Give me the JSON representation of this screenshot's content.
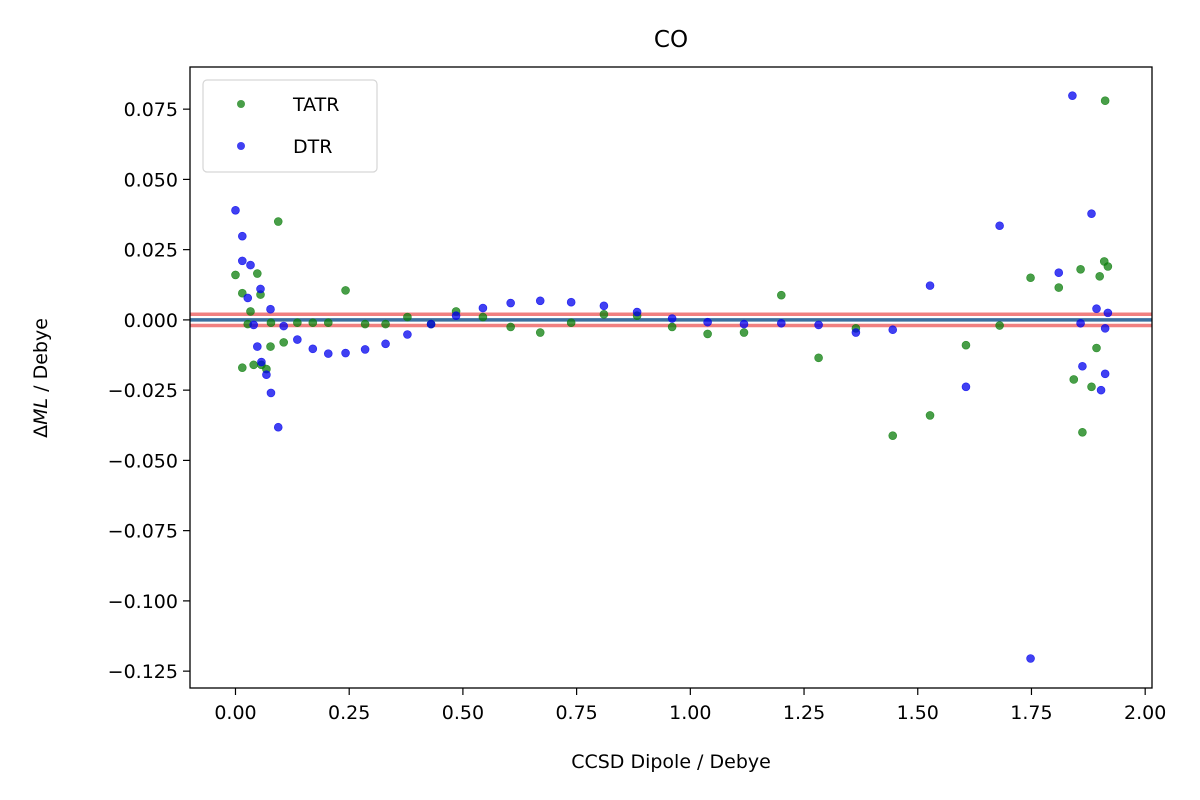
{
  "chart_data": {
    "type": "scatter",
    "title": "CO",
    "xlabel": "CCSD Dipole / Debye",
    "ylabel_prefix": "Δ",
    "ylabel_math": "ML",
    "ylabel_suffix": " / Debye",
    "xlim": [
      -0.1,
      2.015
    ],
    "ylim": [
      -0.131,
      0.09
    ],
    "xticks": [
      0.0,
      0.25,
      0.5,
      0.75,
      1.0,
      1.25,
      1.5,
      1.75,
      2.0
    ],
    "xtick_labels": [
      "0.00",
      "0.25",
      "0.50",
      "0.75",
      "1.00",
      "1.25",
      "1.50",
      "1.75",
      "2.00"
    ],
    "yticks": [
      0.075,
      0.05,
      0.025,
      0.0,
      -0.025,
      -0.05,
      -0.075,
      -0.1,
      -0.125
    ],
    "ytick_labels": [
      "0.075",
      "0.050",
      "0.025",
      "0.000",
      "−0.025",
      "−0.050",
      "−0.075",
      "−0.100",
      "−0.125"
    ],
    "legend_position": "upper left",
    "reference_lines": [
      {
        "y": 0.002,
        "color": "#f08080"
      },
      {
        "y": -0.002,
        "color": "#f08080"
      },
      {
        "y": 0.0,
        "color": "#3a6f9f"
      }
    ],
    "series": [
      {
        "name": "TATR",
        "color": "#0b7d0b",
        "points": [
          [
            0.0,
            0.016
          ],
          [
            0.015,
            0.0095
          ],
          [
            0.015,
            -0.017
          ],
          [
            0.027,
            -0.0015
          ],
          [
            0.033,
            0.003
          ],
          [
            0.04,
            -0.016
          ],
          [
            0.048,
            0.0165
          ],
          [
            0.055,
            0.009
          ],
          [
            0.057,
            -0.016
          ],
          [
            0.068,
            -0.0175
          ],
          [
            0.077,
            -0.0095
          ],
          [
            0.078,
            -0.001
          ],
          [
            0.094,
            0.035
          ],
          [
            0.106,
            -0.008
          ],
          [
            0.136,
            -0.001
          ],
          [
            0.17,
            -0.001
          ],
          [
            0.204,
            -0.001
          ],
          [
            0.242,
            0.0105
          ],
          [
            0.285,
            -0.0015
          ],
          [
            0.33,
            -0.0015
          ],
          [
            0.378,
            0.001
          ],
          [
            0.43,
            -0.0015
          ],
          [
            0.485,
            0.003
          ],
          [
            0.544,
            0.001
          ],
          [
            0.605,
            -0.0025
          ],
          [
            0.67,
            -0.0045
          ],
          [
            0.738,
            -0.001
          ],
          [
            0.81,
            0.002
          ],
          [
            0.883,
            0.0015
          ],
          [
            0.96,
            -0.0025
          ],
          [
            1.038,
            -0.005
          ],
          [
            1.118,
            -0.0045
          ],
          [
            1.2,
            0.0088
          ],
          [
            1.282,
            -0.0135
          ],
          [
            1.364,
            -0.003
          ],
          [
            1.445,
            -0.0412
          ],
          [
            1.527,
            -0.034
          ],
          [
            1.606,
            -0.009
          ],
          [
            1.68,
            -0.002
          ],
          [
            1.748,
            0.015
          ],
          [
            1.81,
            0.0115
          ],
          [
            1.843,
            -0.0212
          ],
          [
            1.858,
            0.018
          ],
          [
            1.862,
            -0.04
          ],
          [
            1.882,
            -0.0238
          ],
          [
            1.893,
            -0.01
          ],
          [
            1.9,
            0.0155
          ],
          [
            1.91,
            0.0208
          ],
          [
            1.912,
            0.078
          ],
          [
            1.918,
            0.019
          ]
        ]
      },
      {
        "name": "DTR",
        "color": "#0000ee",
        "points": [
          [
            0.0,
            0.039
          ],
          [
            0.015,
            0.0298
          ],
          [
            0.015,
            0.021
          ],
          [
            0.027,
            0.0078
          ],
          [
            0.033,
            0.0195
          ],
          [
            0.04,
            -0.0018
          ],
          [
            0.048,
            -0.0095
          ],
          [
            0.055,
            0.011
          ],
          [
            0.057,
            -0.015
          ],
          [
            0.068,
            -0.0195
          ],
          [
            0.077,
            0.0038
          ],
          [
            0.078,
            -0.026
          ],
          [
            0.094,
            -0.0382
          ],
          [
            0.106,
            -0.0022
          ],
          [
            0.136,
            -0.007
          ],
          [
            0.17,
            -0.0103
          ],
          [
            0.204,
            -0.012
          ],
          [
            0.242,
            -0.0118
          ],
          [
            0.285,
            -0.0105
          ],
          [
            0.33,
            -0.0085
          ],
          [
            0.378,
            -0.0052
          ],
          [
            0.43,
            -0.0015
          ],
          [
            0.485,
            0.0015
          ],
          [
            0.544,
            0.0042
          ],
          [
            0.605,
            0.006
          ],
          [
            0.67,
            0.0068
          ],
          [
            0.738,
            0.0063
          ],
          [
            0.81,
            0.005
          ],
          [
            0.883,
            0.0028
          ],
          [
            0.96,
            0.0005
          ],
          [
            1.038,
            -0.0008
          ],
          [
            1.118,
            -0.0015
          ],
          [
            1.2,
            -0.0012
          ],
          [
            1.282,
            -0.0018
          ],
          [
            1.364,
            -0.0045
          ],
          [
            1.445,
            -0.0035
          ],
          [
            1.527,
            0.0122
          ],
          [
            1.606,
            -0.0238
          ],
          [
            1.68,
            0.0335
          ],
          [
            1.748,
            -0.1205
          ],
          [
            1.81,
            0.0168
          ],
          [
            1.84,
            0.0798
          ],
          [
            1.858,
            -0.0012
          ],
          [
            1.862,
            -0.0165
          ],
          [
            1.882,
            0.0378
          ],
          [
            1.893,
            0.004
          ],
          [
            1.903,
            -0.025
          ],
          [
            1.912,
            -0.003
          ],
          [
            1.912,
            -0.0192
          ],
          [
            1.918,
            0.0025
          ]
        ]
      }
    ]
  }
}
